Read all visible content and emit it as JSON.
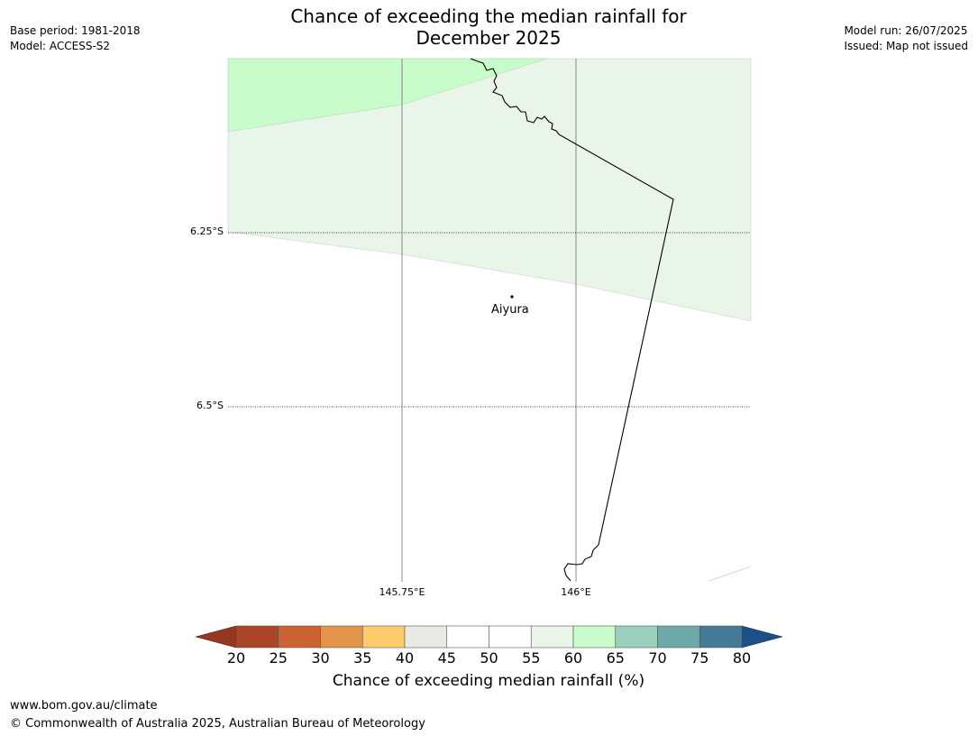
{
  "title_line1": "Chance of exceeding the median rainfall for",
  "title_line2": "December 2025",
  "meta_left": {
    "base_period": "Base period: 1981-2018",
    "model": "Model: ACCESS-S2"
  },
  "meta_right": {
    "model_run": "Model run: 26/07/2025",
    "issued": "Issued: Map not issued"
  },
  "map": {
    "lat_labels": [
      "6.25°S",
      "6.5°S"
    ],
    "lon_labels": [
      "145.75°E",
      "146°E"
    ],
    "place": "Aiyura",
    "colors": {
      "ocean": "#ffffff",
      "band_55_60": "#eaf5ea",
      "band_60_65": "#c9fccb",
      "coast": "#000000",
      "grid": "#888888"
    }
  },
  "colorbar": {
    "title": "Chance of exceeding median rainfall (%)",
    "ticks": [
      "20",
      "25",
      "30",
      "35",
      "40",
      "45",
      "50",
      "55",
      "60",
      "65",
      "70",
      "75",
      "80"
    ],
    "colors": [
      "#ab4527",
      "#cc6333",
      "#e2954a",
      "#fdcc6a",
      "#e9e9e5",
      "#ffffff",
      "#ffffff",
      "#eaf5ea",
      "#c9fccb",
      "#9bd1bc",
      "#6fa8a8",
      "#427a97"
    ],
    "under_color": "#96381f",
    "over_color": "#1b5089"
  },
  "footer": {
    "url": "www.bom.gov.au/climate",
    "copyright": "© Commonwealth of Australia 2025, Australian Bureau of Meteorology"
  }
}
